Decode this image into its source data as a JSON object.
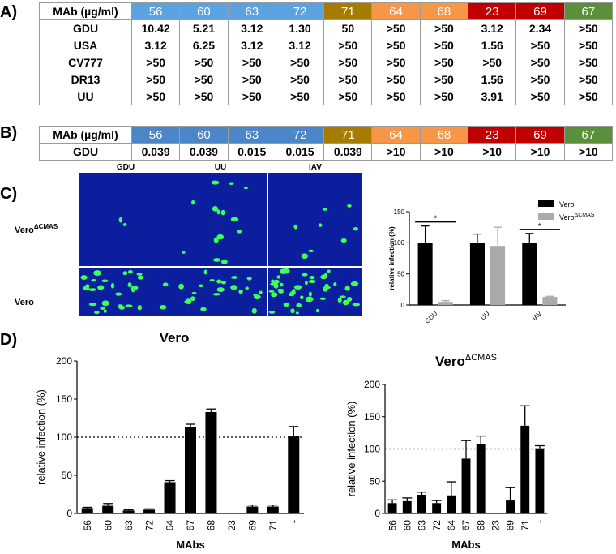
{
  "panel_a": {
    "label": "A)",
    "header": [
      "MAb (µg/ml)",
      "56",
      "60",
      "63",
      "72",
      "71",
      "64",
      "68",
      "23",
      "69",
      "67"
    ],
    "header_colors": [
      "#5ba3e0",
      "#5ba3e0",
      "#5ba3e0",
      "#5ba3e0",
      "#a67c00",
      "#f79646",
      "#f79646",
      "#c00000",
      "#c00000",
      "#5b8f3a"
    ],
    "rows": [
      [
        "GDU",
        "10.42",
        "5.21",
        "3.12",
        "1.30",
        "50",
        ">50",
        ">50",
        "3.12",
        "2.34",
        ">50"
      ],
      [
        "USA",
        "3.12",
        "6.25",
        "3.12",
        "3.12",
        ">50",
        ">50",
        ">50",
        "1.56",
        ">50",
        ">50"
      ],
      [
        "CV777",
        ">50",
        ">50",
        ">50",
        ">50",
        ">50",
        ">50",
        ">50",
        ">50",
        ">50",
        ">50"
      ],
      [
        "DR13",
        ">50",
        ">50",
        ">50",
        ">50",
        ">50",
        ">50",
        ">50",
        "1.56",
        ">50",
        ">50"
      ],
      [
        "UU",
        ">50",
        ">50",
        ">50",
        ">50",
        ">50",
        ">50",
        ">50",
        "3.91",
        ">50",
        ">50"
      ]
    ]
  },
  "panel_b": {
    "label": "B)",
    "header": [
      "MAb (µg/ml)",
      "56",
      "60",
      "63",
      "72",
      "71",
      "64",
      "68",
      "23",
      "69",
      "67"
    ],
    "header_colors": [
      "#4a86c8",
      "#4a86c8",
      "#4a86c8",
      "#4a86c8",
      "#a67c00",
      "#f79646",
      "#f79646",
      "#c00000",
      "#c00000",
      "#5b8f3a"
    ],
    "rows": [
      [
        "GDU",
        "0.039",
        "0.039",
        "0.015",
        "0.015",
        "0.039",
        ">10",
        ">10",
        ">10",
        ">10",
        ">10"
      ]
    ]
  },
  "panel_c": {
    "label": "C)",
    "image_columns": [
      "GDU",
      "UU",
      "IAV"
    ],
    "image_rows": [
      {
        "text": "Vero",
        "superscript": "ΔCMAS"
      },
      {
        "text": "Vero"
      }
    ]
  },
  "panel_d": {
    "label": "D)"
  },
  "chart_data": [
    {
      "type": "bar",
      "y_label": "relative infection (%)",
      "categories": [
        "GDU",
        "UU",
        "IAV"
      ],
      "series": [
        {
          "name": "Vero",
          "color": "#000000",
          "values": [
            100,
            100,
            100
          ],
          "errors": [
            27,
            14,
            15
          ]
        },
        {
          "name": "Vero",
          "name_superscript": "ΔCMAS",
          "color": "#aaaaaa",
          "values": [
            5,
            95,
            13
          ],
          "errors": [
            2,
            30,
            1
          ]
        }
      ],
      "annotations": [
        "*",
        "*"
      ],
      "ylim": [
        0,
        150
      ],
      "yticks": [
        0,
        50,
        100,
        150
      ]
    },
    {
      "type": "bar",
      "title": "Vero",
      "y_label": "relative infection (%)",
      "x_label": "MAbs",
      "categories": [
        "56",
        "60",
        "63",
        "72",
        "64",
        "67",
        "68",
        "23",
        "69",
        "71",
        "-"
      ],
      "values": [
        7,
        10,
        4,
        5,
        41,
        113,
        133,
        null,
        9,
        9,
        101
      ],
      "errors": [
        1,
        3,
        1,
        1,
        2,
        4,
        4,
        null,
        2,
        2,
        13
      ],
      "color": "#000000",
      "reference_line": 100,
      "ylim": [
        0,
        200
      ],
      "yticks": [
        0,
        50,
        100,
        150,
        200
      ]
    },
    {
      "type": "bar",
      "title": "Vero",
      "title_superscript": "ΔCMAS",
      "y_label": "relative infection (%)",
      "x_label": "MAbs",
      "categories": [
        "56",
        "60",
        "63",
        "72",
        "64",
        "67",
        "68",
        "23",
        "69",
        "71",
        "-"
      ],
      "values": [
        16,
        19,
        29,
        16,
        28,
        85,
        108,
        null,
        20,
        136,
        101
      ],
      "errors": [
        5,
        5,
        4,
        4,
        21,
        28,
        12,
        null,
        20,
        31,
        4
      ],
      "color": "#000000",
      "reference_line": 100,
      "ylim": [
        0,
        200
      ],
      "yticks": [
        0,
        50,
        100,
        150,
        200
      ]
    }
  ]
}
